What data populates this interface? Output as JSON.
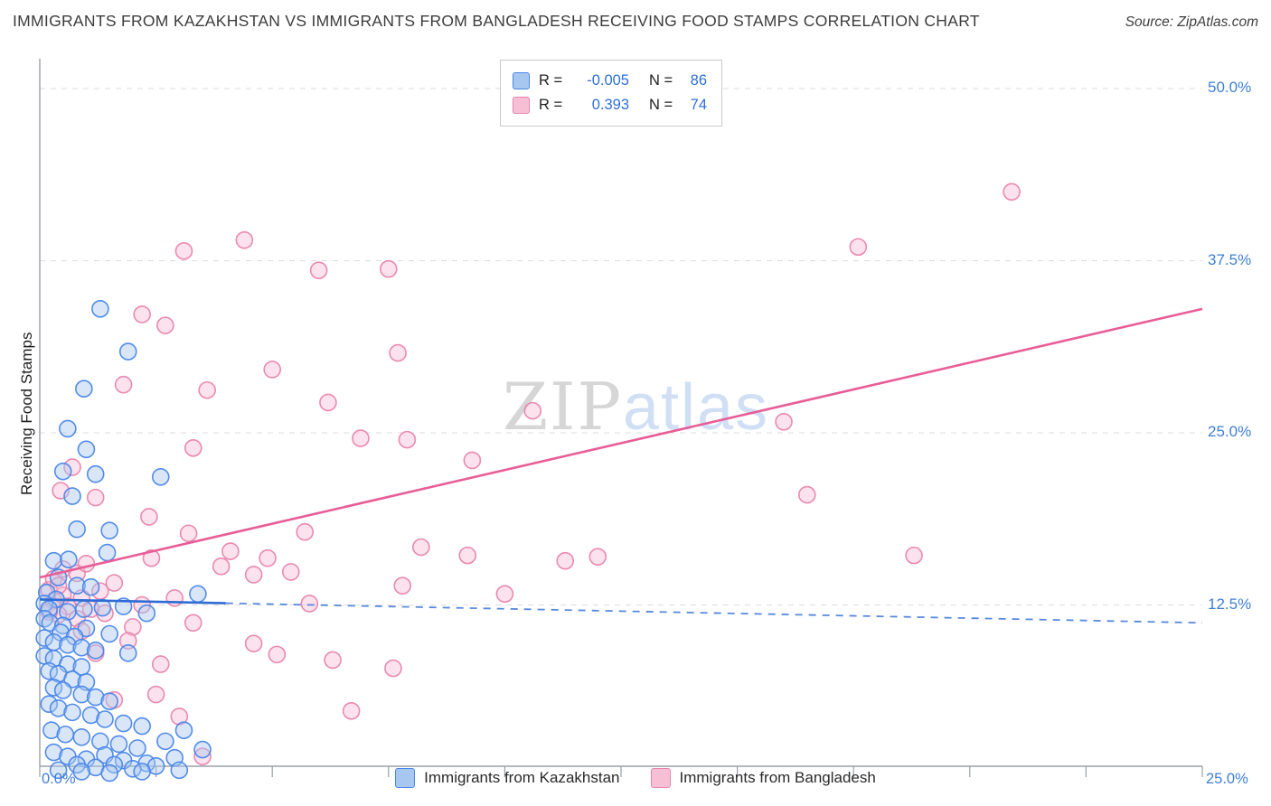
{
  "header": {
    "title": "IMMIGRANTS FROM KAZAKHSTAN VS IMMIGRANTS FROM BANGLADESH RECEIVING FOOD STAMPS CORRELATION CHART",
    "source": "Source: ZipAtlas.com"
  },
  "watermark": {
    "zip": "ZIP",
    "atlas": "atlas"
  },
  "chart_data": {
    "type": "scatter",
    "title": "Immigrants from Kazakhstan vs Immigrants from Bangladesh Receiving Food Stamps",
    "xlabel": "",
    "ylabel": "Receiving Food Stamps",
    "xlim": [
      0,
      25
    ],
    "ylim": [
      0,
      52
    ],
    "x_ticks": [
      "0.0%",
      "25.0%"
    ],
    "y_ticks": [
      {
        "value": 12.5,
        "label": "12.5%"
      },
      {
        "value": 25,
        "label": "25.0%"
      },
      {
        "value": 37.5,
        "label": "37.5%"
      },
      {
        "value": 50,
        "label": "50.0%"
      }
    ],
    "grid": "horizontal dashed",
    "legend_position": "top-center",
    "axis_color": "#9aa0a6",
    "grid_color": "#dcdcdc",
    "tick_text_color": "#3f7fd4",
    "series": [
      {
        "name": "Immigrants from Kazakhstan",
        "r": -0.005,
        "n": 86,
        "r_label": "R =",
        "r_display": "-0.005",
        "n_label": "N =",
        "n_display": "86",
        "fill": "#a8c7f0",
        "stroke": "#4a86e8",
        "trend_color": "#2e6bd4",
        "trend": {
          "x1": 0,
          "y1": 12.9,
          "x2": 25,
          "y2": 11.2,
          "solid_to": 4.0,
          "dashed_extension": true
        },
        "points": [
          [
            1.3,
            34.0
          ],
          [
            1.9,
            30.9
          ],
          [
            0.95,
            28.2
          ],
          [
            0.6,
            25.3
          ],
          [
            1.0,
            23.8
          ],
          [
            0.5,
            22.2
          ],
          [
            1.2,
            22.0
          ],
          [
            2.6,
            21.8
          ],
          [
            0.7,
            20.4
          ],
          [
            0.8,
            18.0
          ],
          [
            1.5,
            17.9
          ],
          [
            1.45,
            16.3
          ],
          [
            0.3,
            15.7
          ],
          [
            0.62,
            15.8
          ],
          [
            0.4,
            14.5
          ],
          [
            0.8,
            13.9
          ],
          [
            1.1,
            13.8
          ],
          [
            0.15,
            13.4
          ],
          [
            0.35,
            12.9
          ],
          [
            0.1,
            12.6
          ],
          [
            0.95,
            12.2
          ],
          [
            1.35,
            12.3
          ],
          [
            1.8,
            12.4
          ],
          [
            2.3,
            11.9
          ],
          [
            3.4,
            13.3
          ],
          [
            0.2,
            12.2
          ],
          [
            0.6,
            12.0
          ],
          [
            0.1,
            11.5
          ],
          [
            0.22,
            11.2
          ],
          [
            0.5,
            11.0
          ],
          [
            1.0,
            10.8
          ],
          [
            0.45,
            10.5
          ],
          [
            1.5,
            10.4
          ],
          [
            0.75,
            10.2
          ],
          [
            0.1,
            10.1
          ],
          [
            0.3,
            9.8
          ],
          [
            0.6,
            9.6
          ],
          [
            0.9,
            9.4
          ],
          [
            1.2,
            9.2
          ],
          [
            1.9,
            9.0
          ],
          [
            0.1,
            8.8
          ],
          [
            0.3,
            8.6
          ],
          [
            0.6,
            8.2
          ],
          [
            0.9,
            8.0
          ],
          [
            0.2,
            7.7
          ],
          [
            0.4,
            7.5
          ],
          [
            0.7,
            7.1
          ],
          [
            1.0,
            6.9
          ],
          [
            0.3,
            6.5
          ],
          [
            0.5,
            6.3
          ],
          [
            0.9,
            6.0
          ],
          [
            1.2,
            5.8
          ],
          [
            1.5,
            5.5
          ],
          [
            0.2,
            5.3
          ],
          [
            0.4,
            5.0
          ],
          [
            0.7,
            4.7
          ],
          [
            1.1,
            4.5
          ],
          [
            1.4,
            4.2
          ],
          [
            1.8,
            3.9
          ],
          [
            2.2,
            3.7
          ],
          [
            0.25,
            3.4
          ],
          [
            0.55,
            3.1
          ],
          [
            0.9,
            2.9
          ],
          [
            1.3,
            2.6
          ],
          [
            1.7,
            2.4
          ],
          [
            2.1,
            2.1
          ],
          [
            2.7,
            2.6
          ],
          [
            3.1,
            3.4
          ],
          [
            3.5,
            2.0
          ],
          [
            0.3,
            1.8
          ],
          [
            0.6,
            1.5
          ],
          [
            1.0,
            1.3
          ],
          [
            1.4,
            1.6
          ],
          [
            1.8,
            1.2
          ],
          [
            2.3,
            1.0
          ],
          [
            2.9,
            1.4
          ],
          [
            0.8,
            0.9
          ],
          [
            1.2,
            0.7
          ],
          [
            1.6,
            0.9
          ],
          [
            2.0,
            0.6
          ],
          [
            2.5,
            0.8
          ],
          [
            3.0,
            0.5
          ],
          [
            0.4,
            0.5
          ],
          [
            0.9,
            0.4
          ],
          [
            1.5,
            0.3
          ],
          [
            2.2,
            0.4
          ]
        ]
      },
      {
        "name": "Immigrants from Bangladesh",
        "r": 0.393,
        "n": 74,
        "r_label": "R =",
        "r_display": "0.393",
        "n_label": "N =",
        "n_display": "74",
        "fill": "#f7bfd4",
        "stroke": "#e884ac",
        "trend_color": "#e85d97",
        "trend": {
          "x1": 0,
          "y1": 14.5,
          "x2": 25,
          "y2": 34.0,
          "solid_to": 25,
          "dashed_extension": false
        },
        "points": [
          [
            20.9,
            42.5
          ],
          [
            17.6,
            38.5
          ],
          [
            4.4,
            39.0
          ],
          [
            3.1,
            38.2
          ],
          [
            6.0,
            36.8
          ],
          [
            7.5,
            36.9
          ],
          [
            2.2,
            33.6
          ],
          [
            2.7,
            32.8
          ],
          [
            7.7,
            30.8
          ],
          [
            5.0,
            29.6
          ],
          [
            1.8,
            28.5
          ],
          [
            3.6,
            28.1
          ],
          [
            6.2,
            27.2
          ],
          [
            10.6,
            26.6
          ],
          [
            16.0,
            25.8
          ],
          [
            6.9,
            24.6
          ],
          [
            7.9,
            24.5
          ],
          [
            3.3,
            23.9
          ],
          [
            9.3,
            23.0
          ],
          [
            0.7,
            22.5
          ],
          [
            1.2,
            20.3
          ],
          [
            16.5,
            20.5
          ],
          [
            3.2,
            17.7
          ],
          [
            5.7,
            17.8
          ],
          [
            2.4,
            15.9
          ],
          [
            3.9,
            15.3
          ],
          [
            4.6,
            14.7
          ],
          [
            8.2,
            16.7
          ],
          [
            9.2,
            16.1
          ],
          [
            11.3,
            15.7
          ],
          [
            18.8,
            16.1
          ],
          [
            7.8,
            13.9
          ],
          [
            5.8,
            12.6
          ],
          [
            10.0,
            13.3
          ],
          [
            0.2,
            13.6
          ],
          [
            0.3,
            12.8
          ],
          [
            0.5,
            13.2
          ],
          [
            0.6,
            12.4
          ],
          [
            0.9,
            13.0
          ],
          [
            1.1,
            12.2
          ],
          [
            0.4,
            11.8
          ],
          [
            0.8,
            11.5
          ],
          [
            1.4,
            11.9
          ],
          [
            2.0,
            10.9
          ],
          [
            4.6,
            9.7
          ],
          [
            5.1,
            8.9
          ],
          [
            6.3,
            8.5
          ],
          [
            7.6,
            7.9
          ],
          [
            1.6,
            5.6
          ],
          [
            2.5,
            6.0
          ],
          [
            3.0,
            4.4
          ],
          [
            3.5,
            1.5
          ],
          [
            6.7,
            4.8
          ],
          [
            0.3,
            14.4
          ],
          [
            0.5,
            15.1
          ],
          [
            0.8,
            14.8
          ],
          [
            1.0,
            15.5
          ],
          [
            1.6,
            14.1
          ],
          [
            0.2,
            12.0
          ],
          [
            0.4,
            13.9
          ],
          [
            1.3,
            13.5
          ],
          [
            2.9,
            13.0
          ],
          [
            2.2,
            12.5
          ],
          [
            3.3,
            11.2
          ],
          [
            1.9,
            9.9
          ],
          [
            1.2,
            9.0
          ],
          [
            2.6,
            8.2
          ],
          [
            0.9,
            10.6
          ],
          [
            4.1,
            16.4
          ],
          [
            4.9,
            15.9
          ],
          [
            5.4,
            14.9
          ],
          [
            12.0,
            16.0
          ],
          [
            0.45,
            20.8
          ],
          [
            2.35,
            18.9
          ]
        ]
      }
    ]
  }
}
